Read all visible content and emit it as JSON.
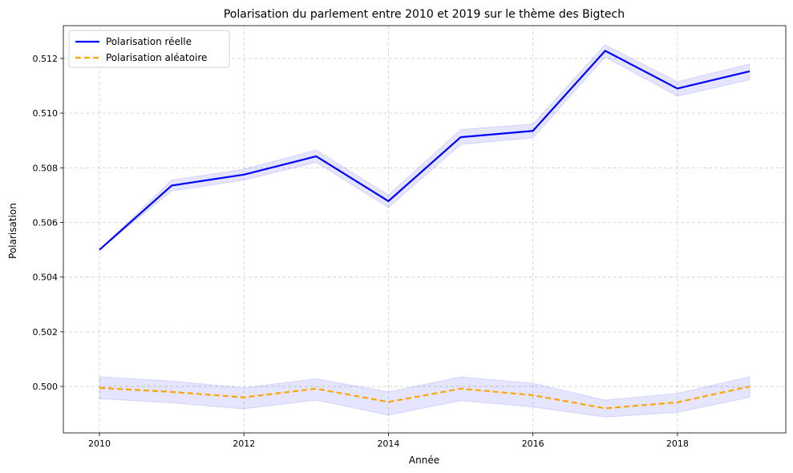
{
  "chart_data": {
    "type": "line",
    "title": "Polarisation du parlement entre 2010 et 2019 sur le thème des Bigtech",
    "xlabel": "Année",
    "ylabel": "Polarisation",
    "xlim": [
      2009.5,
      2019.5
    ],
    "ylim": [
      0.4983,
      0.5132
    ],
    "x_ticks": [
      2010,
      2012,
      2014,
      2016,
      2018
    ],
    "y_ticks": [
      0.5,
      0.502,
      0.504,
      0.506,
      0.508,
      0.51,
      0.512
    ],
    "grid": true,
    "legend_position": "top-left",
    "x": [
      2010,
      2011,
      2012,
      2013,
      2014,
      2015,
      2016,
      2017,
      2018,
      2019
    ],
    "series": [
      {
        "name": "Polarisation réelle",
        "color": "#0000ff",
        "style": "solid",
        "values": [
          0.505,
          0.50735,
          0.50775,
          0.50842,
          0.50678,
          0.50912,
          0.50935,
          0.51228,
          0.5109,
          0.51153
        ],
        "band_lower": [
          0.505,
          0.50715,
          0.50755,
          0.5082,
          0.50655,
          0.50885,
          0.5091,
          0.51205,
          0.51062,
          0.51122
        ],
        "band_upper": [
          0.505,
          0.50755,
          0.50795,
          0.50865,
          0.507,
          0.5094,
          0.5096,
          0.5125,
          0.51115,
          0.5118
        ],
        "band_color": "#0000ff"
      },
      {
        "name": "Polarisation aléatoire",
        "color": "#ffa500",
        "style": "dashed",
        "values": [
          0.49995,
          0.4998,
          0.4996,
          0.49992,
          0.49943,
          0.49992,
          0.49968,
          0.4992,
          0.49942,
          0.5
        ],
        "band_lower": [
          0.49955,
          0.4994,
          0.49918,
          0.4995,
          0.49895,
          0.49948,
          0.49925,
          0.49888,
          0.49905,
          0.4996
        ],
        "band_upper": [
          0.50035,
          0.5002,
          0.49995,
          0.50028,
          0.4998,
          0.50035,
          0.50012,
          0.4995,
          0.49975,
          0.50035
        ],
        "band_color": "#0000ff"
      }
    ]
  }
}
